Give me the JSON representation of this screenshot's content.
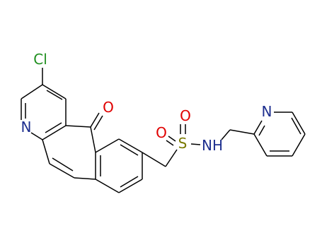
{
  "atoms": [
    {
      "label": "Cl"
    },
    {
      "label": "O"
    },
    {
      "label": "N"
    },
    {
      "label": "O"
    },
    {
      "label": "S"
    },
    {
      "label": "O"
    },
    {
      "label": "NH"
    },
    {
      "label": "N"
    }
  ]
}
